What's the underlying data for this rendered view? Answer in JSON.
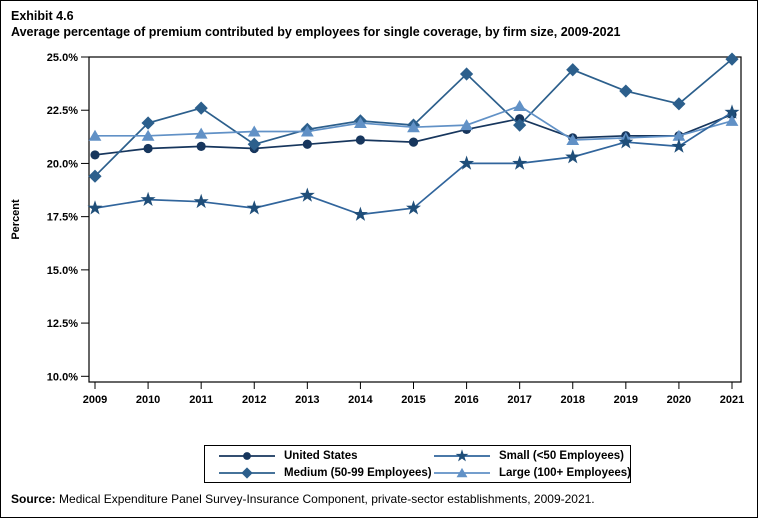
{
  "title": {
    "exhibit": "Exhibit 4.6",
    "text": "Average percentage of premium contributed by employees for single coverage, by firm size, 2009-2021"
  },
  "chart_data": {
    "type": "line",
    "x": [
      2009,
      2010,
      2011,
      2012,
      2013,
      2014,
      2015,
      2016,
      2017,
      2018,
      2019,
      2020,
      2021
    ],
    "ylabel": "Percent",
    "ylim": [
      10,
      25
    ],
    "ytick_step": 2.5,
    "ytick_labels": [
      "25.0%",
      "22.5%",
      "20.0%",
      "17.5%",
      "15.0%",
      "12.5%",
      "10.0%"
    ],
    "grid": false,
    "legend_position": "bottom-center",
    "series": [
      {
        "name": "United States",
        "marker": "circle",
        "color": "#17365d",
        "line_color": "#17365d",
        "values": [
          20.4,
          20.7,
          20.8,
          20.7,
          20.9,
          21.1,
          21.0,
          21.6,
          22.1,
          21.2,
          21.3,
          21.3,
          22.3
        ]
      },
      {
        "name": "Medium (50-99 Employees)",
        "marker": "diamond",
        "color": "#2c5f8c",
        "line_color": "#2c5f8c",
        "values": [
          19.4,
          21.9,
          22.6,
          20.9,
          21.6,
          22.0,
          21.8,
          24.2,
          21.8,
          24.4,
          23.4,
          22.8,
          24.9
        ]
      },
      {
        "name": "Small (<50 Employees)",
        "marker": "star",
        "color": "#1f4e79",
        "line_color": "#31659c",
        "values": [
          17.9,
          18.3,
          18.2,
          17.9,
          18.5,
          17.6,
          17.9,
          20.0,
          20.0,
          20.3,
          21.0,
          20.8,
          22.4
        ]
      },
      {
        "name": "Large (100+ Employees)",
        "marker": "triangle",
        "color": "#6191c6",
        "line_color": "#6191c6",
        "values": [
          21.3,
          21.3,
          21.4,
          21.5,
          21.5,
          21.9,
          21.7,
          21.8,
          22.7,
          21.1,
          21.2,
          21.3,
          22.0
        ]
      }
    ]
  },
  "legend": {
    "items": [
      {
        "label": "United States",
        "series": 0
      },
      {
        "label": "Small (<50 Employees)",
        "series": 2
      },
      {
        "label": "Medium (50-99 Employees)",
        "series": 1
      },
      {
        "label": "Large (100+ Employees)",
        "series": 3
      }
    ]
  },
  "source": {
    "label": "Source:",
    "text": " Medical Expenditure Panel Survey-Insurance Component, private-sector establishments, 2009-2021."
  }
}
